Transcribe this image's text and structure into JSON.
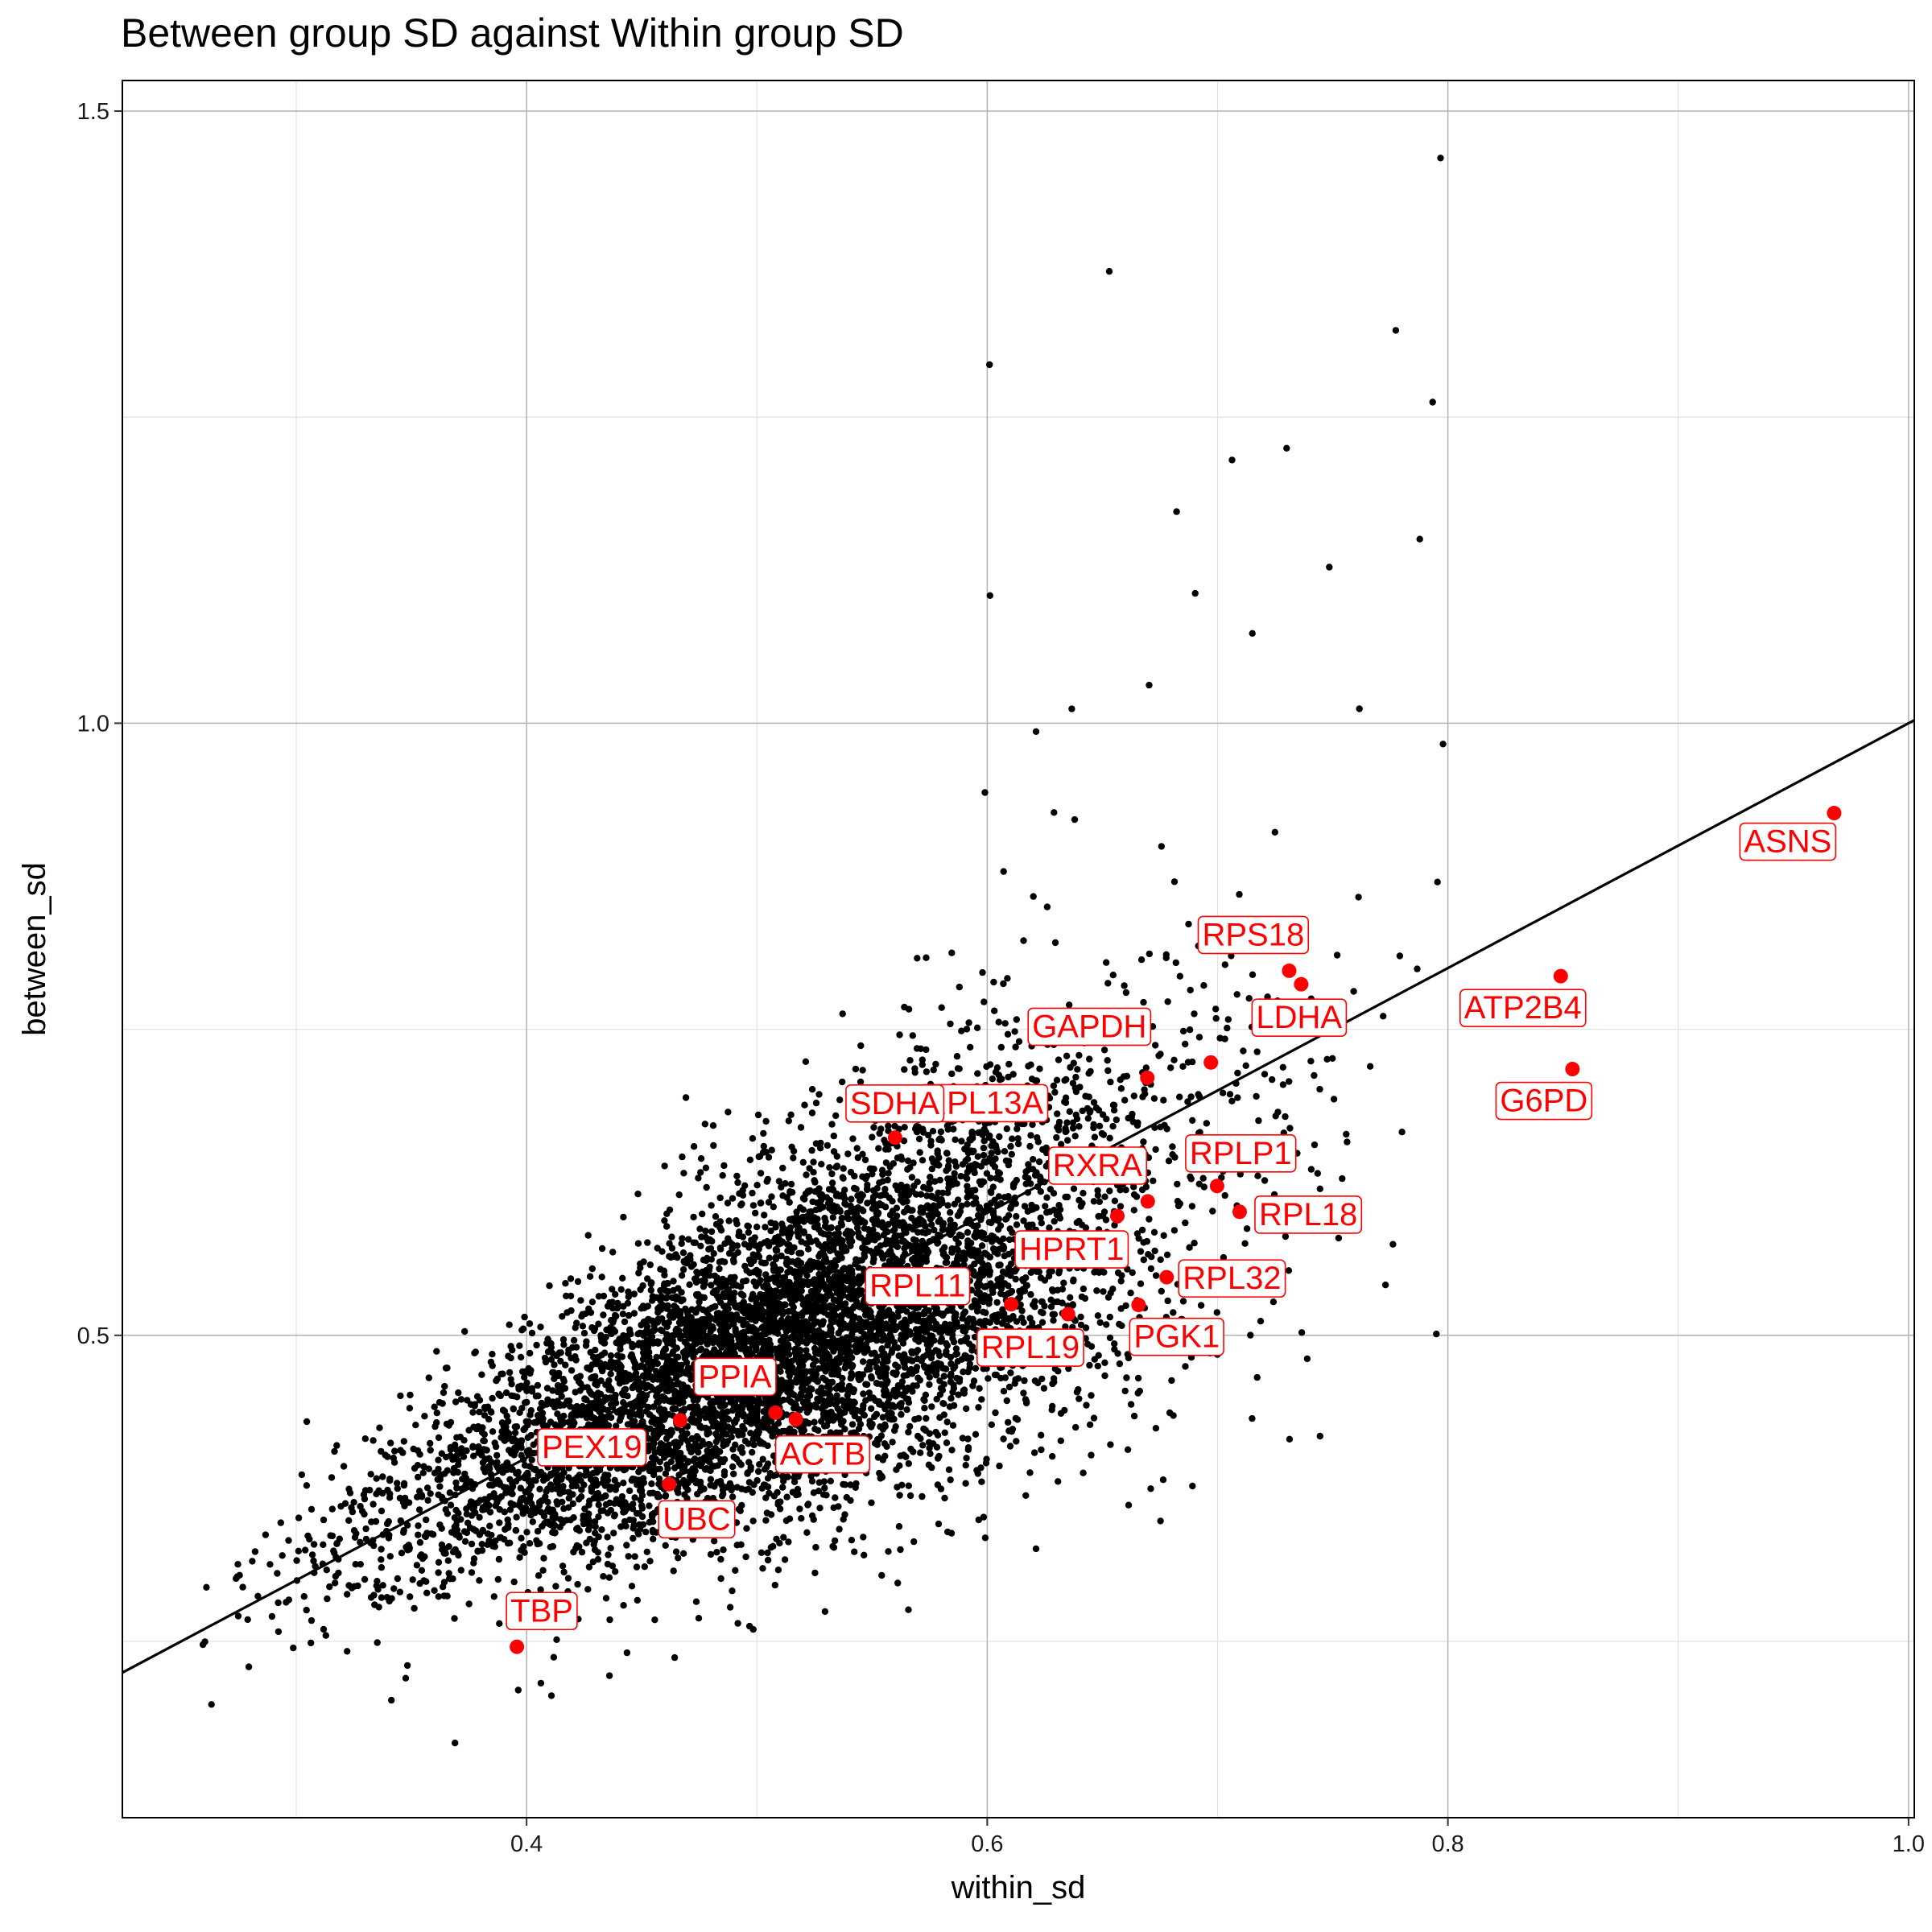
{
  "chart_data": {
    "type": "scatter",
    "title": "Between group SD against Within group SD",
    "xlabel": "within_sd",
    "ylabel": "between_sd",
    "xlim": [
      0.2245,
      1.0025
    ],
    "ylim": [
      0.106,
      1.525
    ],
    "x_ticks": [
      0.4,
      0.6,
      0.8,
      1.0
    ],
    "x_tick_labels": [
      "0.4",
      "0.6",
      "0.8",
      "1.0"
    ],
    "y_ticks": [
      0.5,
      1.0,
      1.5
    ],
    "y_tick_labels": [
      "0.5",
      "1.0",
      "1.5"
    ],
    "x_minor_grid": [
      0.3,
      0.5,
      0.7,
      0.9
    ],
    "y_minor_grid": [
      0.25,
      0.75,
      1.25
    ],
    "grid": true,
    "legend": "none",
    "reference_line": {
      "intercept": 0.0,
      "slope": 1.0
    },
    "colors": {
      "background_points": "#000000",
      "highlight_points": "#ff0000",
      "reference_line": "#000000",
      "grid_major": "#b3b3b3",
      "grid_minor": "#e2e2e2"
    },
    "background_series": {
      "name": "",
      "n_points": 7000,
      "description_of_cloud": "dense positively correlated cloud of genes between within_sd 0.25 and 0.80",
      "sample_points": [
        [
          0.2595,
          0.2474
        ],
        [
          0.2632,
          0.1985
        ],
        [
          0.2748,
          0.2707
        ],
        [
          0.2794,
          0.2292
        ],
        [
          0.2809,
          0.3155
        ],
        [
          0.2987,
          0.2447
        ],
        [
          0.3003,
          0.2997
        ],
        [
          0.3039,
          0.3246
        ],
        [
          0.3115,
          0.3133
        ],
        [
          0.3183,
          0.3059
        ],
        [
          0.3241,
          0.2936
        ],
        [
          0.3346,
          0.348
        ],
        [
          0.3359,
          0.278
        ],
        [
          0.3368,
          0.3169
        ],
        [
          0.3403,
          0.3368
        ],
        [
          0.3424,
          0.2931
        ],
        [
          0.347,
          0.3606
        ],
        [
          0.3492,
          0.3264
        ],
        [
          0.3576,
          0.3909
        ],
        [
          0.3576,
          0.4653
        ],
        [
          0.3689,
          0.167
        ],
        [
          0.3818,
          0.4412
        ],
        [
          0.3853,
          0.4214
        ],
        [
          0.3879,
          0.4521
        ],
        [
          0.3964,
          0.2102
        ],
        [
          0.4062,
          0.2159
        ],
        [
          0.4094,
          0.4865
        ],
        [
          0.4243,
          0.5172
        ],
        [
          0.4353,
          0.5238
        ],
        [
          0.4537,
          0.5576
        ],
        [
          0.4692,
          0.6942
        ],
        [
          0.479,
          0.4981
        ],
        [
          0.4923,
          0.5845
        ],
        [
          0.503,
          0.6544
        ],
        [
          0.5178,
          0.586
        ],
        [
          0.5212,
          0.7236
        ],
        [
          0.5375,
          0.6282
        ],
        [
          0.5524,
          0.6998
        ],
        [
          0.564,
          0.7681
        ],
        [
          0.5844,
          0.6895
        ],
        [
          0.5846,
          0.8124
        ],
        [
          0.599,
          0.9434
        ],
        [
          0.601,
          1.2929
        ],
        [
          0.6012,
          1.1043
        ],
        [
          0.6071,
          0.8789
        ],
        [
          0.6212,
          0.9932
        ],
        [
          0.6367,
          1.0117
        ],
        [
          0.653,
          1.3691
        ],
        [
          0.6703,
          1.0311
        ],
        [
          0.6822,
          1.1728
        ],
        [
          0.6903,
          1.1061
        ],
        [
          0.7063,
          1.215
        ],
        [
          0.7151,
          1.0734
        ],
        [
          0.73,
          1.2246
        ],
        [
          0.7485,
          1.1275
        ],
        [
          0.7616,
          1.0118
        ],
        [
          0.7774,
          1.3209
        ],
        [
          0.7878,
          1.1504
        ],
        [
          0.7934,
          1.2623
        ],
        [
          0.7968,
          1.4617
        ],
        [
          0.7979,
          0.983
        ],
        [
          0.795,
          0.5011
        ],
        [
          0.7729,
          0.5412
        ],
        [
          0.7445,
          0.4177
        ],
        [
          0.715,
          0.4321
        ],
        [
          0.6891,
          0.3769
        ],
        [
          0.6535,
          0.4107
        ],
        [
          0.6212,
          0.3257
        ],
        [
          0.5845,
          0.3384
        ],
        [
          0.5542,
          0.3039
        ],
        [
          0.5296,
          0.2744
        ],
        [
          0.4968,
          0.2624
        ],
        [
          0.4643,
          0.2368
        ],
        [
          0.436,
          0.222
        ],
        [
          0.4108,
          0.2057
        ],
        [
          0.578,
          0.4711
        ],
        [
          0.5543,
          0.4432
        ],
        [
          0.5151,
          0.4102
        ],
        [
          0.4842,
          0.3808
        ],
        [
          0.4549,
          0.3478
        ],
        [
          0.619,
          0.5513
        ],
        [
          0.6551,
          0.6012
        ],
        [
          0.7014,
          0.642
        ],
        [
          0.7444,
          0.701
        ],
        [
          0.7719,
          0.7607
        ],
        [
          0.4373,
          0.3116
        ],
        [
          0.4712,
          0.3429
        ],
        [
          0.5031,
          0.3779
        ],
        [
          0.536,
          0.4204
        ],
        [
          0.5708,
          0.4634
        ]
      ]
    },
    "highlighted": [
      {
        "label": "ASNS",
        "x": 0.9677,
        "y": 0.9266
      },
      {
        "label": "ATP2B4",
        "x": 0.849,
        "y": 0.7934
      },
      {
        "label": "G6PD",
        "x": 0.8541,
        "y": 0.7175
      },
      {
        "label": "RPS18",
        "x": 0.7311,
        "y": 0.7978
      },
      {
        "label": "LDHA",
        "x": 0.7363,
        "y": 0.7868
      },
      {
        "label": "GAPDH",
        "x": 0.6971,
        "y": 0.7229
      },
      {
        "label": "RPL13A",
        "x": 0.6695,
        "y": 0.7104
      },
      {
        "label": "SDHA",
        "x": 0.56,
        "y": 0.6615
      },
      {
        "label": "RPLP1",
        "x": 0.6998,
        "y": 0.622
      },
      {
        "label": "RXRA",
        "x": 0.6697,
        "y": 0.6094
      },
      {
        "label": "RPL18",
        "x": 0.7096,
        "y": 0.6009
      },
      {
        "label": "HPRT1",
        "x": 0.6565,
        "y": 0.5975
      },
      {
        "label": "RPL32",
        "x": 0.6779,
        "y": 0.5475
      },
      {
        "label": "RPL11",
        "x": 0.6104,
        "y": 0.5254
      },
      {
        "label": "RPL19",
        "x": 0.6351,
        "y": 0.5173
      },
      {
        "label": "PGK1",
        "x": 0.6657,
        "y": 0.5248
      },
      {
        "label": "PPIA",
        "x": 0.5081,
        "y": 0.4369
      },
      {
        "label": "ACTB",
        "x": 0.5169,
        "y": 0.4314
      },
      {
        "label": "PEX19",
        "x": 0.4667,
        "y": 0.4306
      },
      {
        "label": "UBC",
        "x": 0.4619,
        "y": 0.3784
      },
      {
        "label": "TBP",
        "x": 0.3958,
        "y": 0.2456
      }
    ]
  }
}
